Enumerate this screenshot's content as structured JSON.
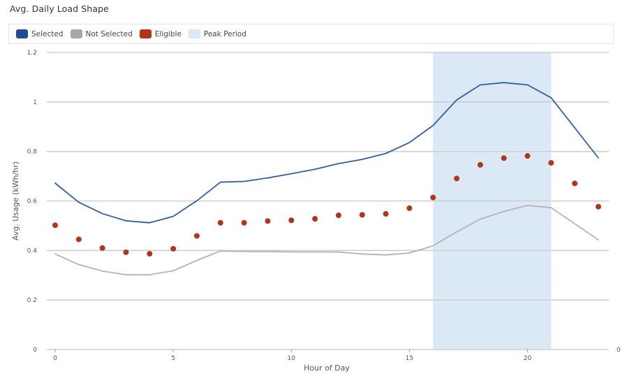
{
  "title": "Avg. Daily Load Shape",
  "legend": [
    {
      "label": "Selected",
      "color": "#1f4e96",
      "icon": "legend-swatch"
    },
    {
      "label": "Not Selected",
      "color": "#a8a8a8",
      "icon": "legend-swatch"
    },
    {
      "label": "Eligible",
      "color": "#b5321b",
      "icon": "legend-swatch"
    },
    {
      "label": "Peak Period",
      "color": "#dbe9f7",
      "icon": "legend-swatch"
    }
  ],
  "chart_data": {
    "type": "line",
    "title": "Avg. Daily Load Shape",
    "xlabel": "Hour of Day",
    "ylabel": "Avg. Usage (kWh/hr)",
    "x": [
      0,
      1,
      2,
      3,
      4,
      5,
      6,
      7,
      8,
      9,
      10,
      11,
      12,
      13,
      14,
      15,
      16,
      17,
      18,
      19,
      20,
      21,
      22,
      23
    ],
    "xlim": [
      0,
      23
    ],
    "ylim": [
      0,
      1.2
    ],
    "xticks": [
      "0",
      "5",
      "10",
      "15",
      "20"
    ],
    "yticks": [
      "0",
      "0.2",
      "0.4",
      "0.6",
      "0.8",
      "1",
      "1.2"
    ],
    "secondary_axis_tick": "0",
    "grid": true,
    "legend_position": "top",
    "peak_period": {
      "label": "Peak Period",
      "start": 16,
      "end": 21
    },
    "series": [
      {
        "name": "Selected",
        "kind": "line",
        "color": "#2e5fa3",
        "values": [
          0.672,
          0.595,
          0.549,
          0.52,
          0.512,
          0.538,
          0.601,
          0.676,
          0.679,
          0.693,
          0.71,
          0.728,
          0.751,
          0.768,
          0.792,
          0.836,
          0.905,
          1.008,
          1.069,
          1.078,
          1.069,
          1.017,
          null,
          0.774
        ]
      },
      {
        "name": "Not Selected",
        "kind": "line",
        "color": "#b3b3b3",
        "values": [
          0.386,
          0.343,
          0.317,
          0.302,
          0.302,
          0.318,
          0.36,
          0.398,
          0.396,
          0.396,
          0.394,
          0.394,
          0.394,
          0.386,
          0.382,
          0.39,
          0.419,
          0.475,
          0.527,
          0.558,
          0.582,
          0.573,
          null,
          0.443
        ]
      },
      {
        "name": "Eligible",
        "kind": "scatter",
        "color": "#b5321b",
        "values": [
          0.502,
          0.445,
          0.41,
          0.393,
          0.387,
          0.407,
          0.459,
          0.512,
          0.512,
          0.519,
          0.522,
          0.528,
          0.542,
          0.544,
          0.548,
          0.571,
          0.614,
          0.691,
          0.746,
          0.773,
          0.782,
          0.754,
          0.671,
          0.577
        ]
      }
    ]
  }
}
